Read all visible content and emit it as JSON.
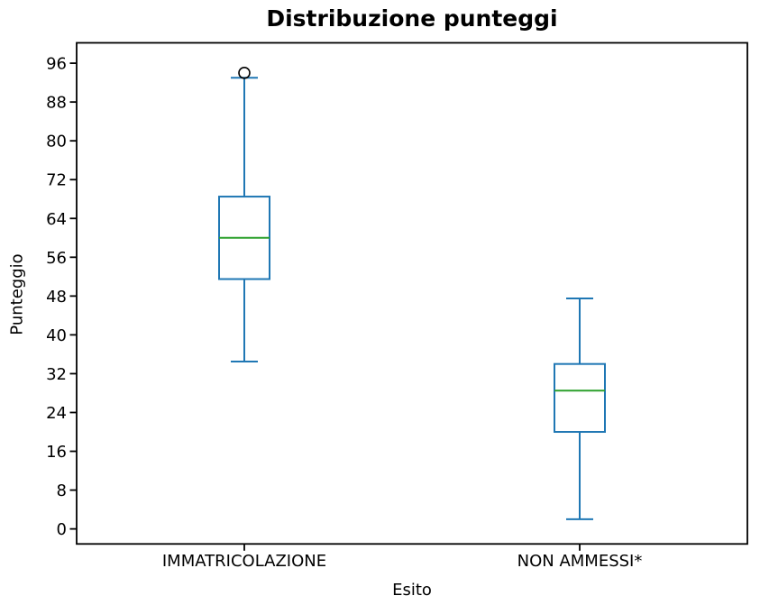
{
  "figure": {
    "title": "Distribuzione punteggi",
    "xlabel": "Esito",
    "ylabel": "Punteggio"
  },
  "chart_data": {
    "type": "boxplot",
    "title": "Distribuzione punteggi",
    "xlabel": "Esito",
    "ylabel": "Punteggio",
    "categories": [
      "IMMATRICOLAZIONE",
      "NON AMMESSI*"
    ],
    "yticks": [
      0,
      8,
      16,
      24,
      32,
      40,
      48,
      56,
      64,
      72,
      80,
      88,
      96
    ],
    "ylim": [
      -3.1,
      100.2
    ],
    "xlim": [
      0.5,
      2.5
    ],
    "grid": false,
    "legend": false,
    "series": [
      {
        "name": "IMMATRICOLAZIONE",
        "position": 1,
        "whisker_low": 34.5,
        "q1": 51.5,
        "median": 60,
        "q3": 68.5,
        "whisker_high": 93,
        "outliers": [
          94
        ]
      },
      {
        "name": "NON AMMESSI*",
        "position": 2,
        "whisker_low": 2,
        "q1": 20,
        "median": 28.5,
        "q3": 34,
        "whisker_high": 47.5,
        "outliers": []
      }
    ],
    "colors": {
      "box": "#1f77b4",
      "median": "#2ca02c",
      "outlier_edge": "#000000",
      "spine": "#000000",
      "tick_label": "#000000"
    }
  }
}
